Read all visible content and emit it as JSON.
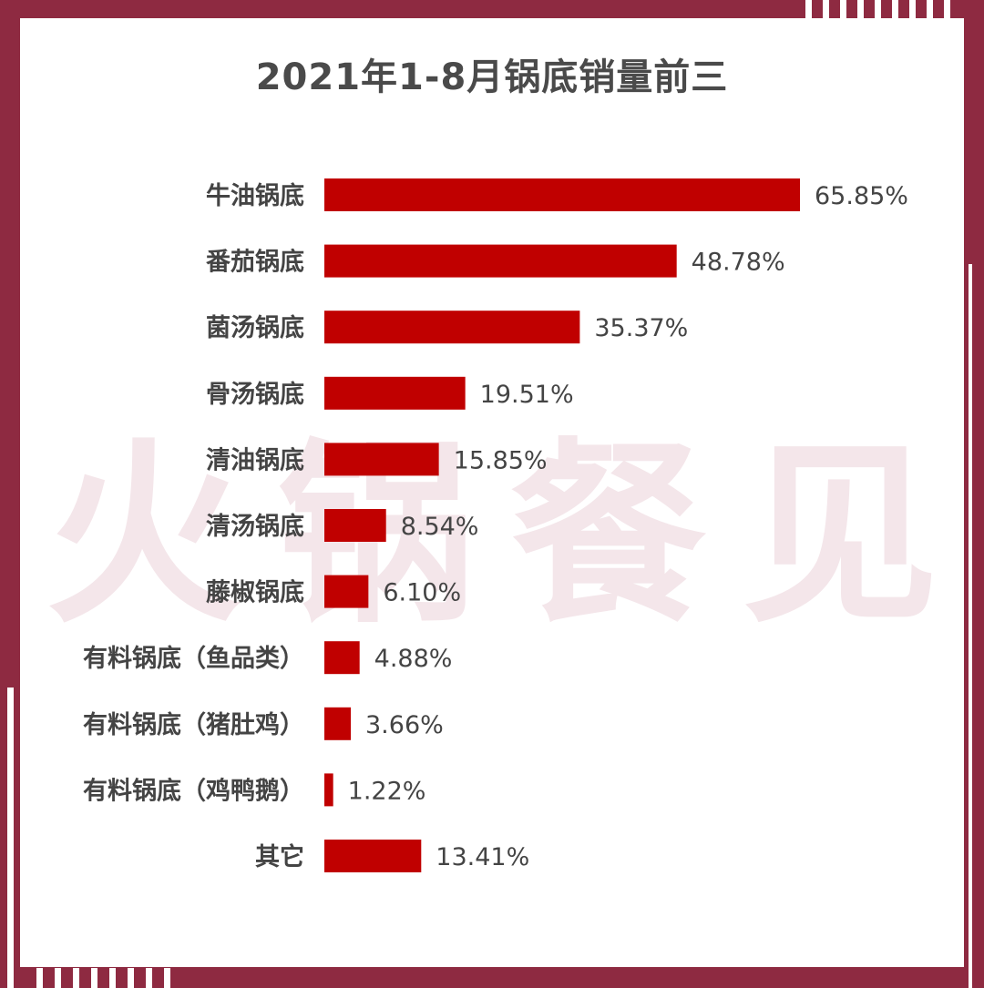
{
  "chart_data": {
    "type": "bar",
    "orientation": "horizontal",
    "title": "2021年1-8月锅底销量前三",
    "categories": [
      "牛油锅底",
      "番茄锅底",
      "菌汤锅底",
      "骨汤锅底",
      "清油锅底",
      "清汤锅底",
      "藤椒锅底",
      "有料锅底（鱼品类）",
      "有料锅底（猪肚鸡）",
      "有料锅底（鸡鸭鹅）",
      "其它"
    ],
    "values": [
      65.85,
      48.78,
      35.37,
      19.51,
      15.85,
      8.54,
      6.1,
      4.88,
      3.66,
      1.22,
      13.41
    ],
    "value_labels": [
      "65.85%",
      "48.78%",
      "35.37%",
      "19.51%",
      "15.85%",
      "8.54%",
      "6.10%",
      "4.88%",
      "3.66%",
      "1.22%",
      "13.41%"
    ],
    "unit": "%",
    "xlim": [
      0,
      65.85
    ],
    "bar_color": "#c00000",
    "grid": false,
    "legend": "none"
  },
  "watermark": "火锅餐见",
  "colors": {
    "frame": "#8e2a41",
    "card": "#ffffff",
    "bar": "#c00000",
    "text": "#444444",
    "watermark": "#f4e6ea"
  }
}
